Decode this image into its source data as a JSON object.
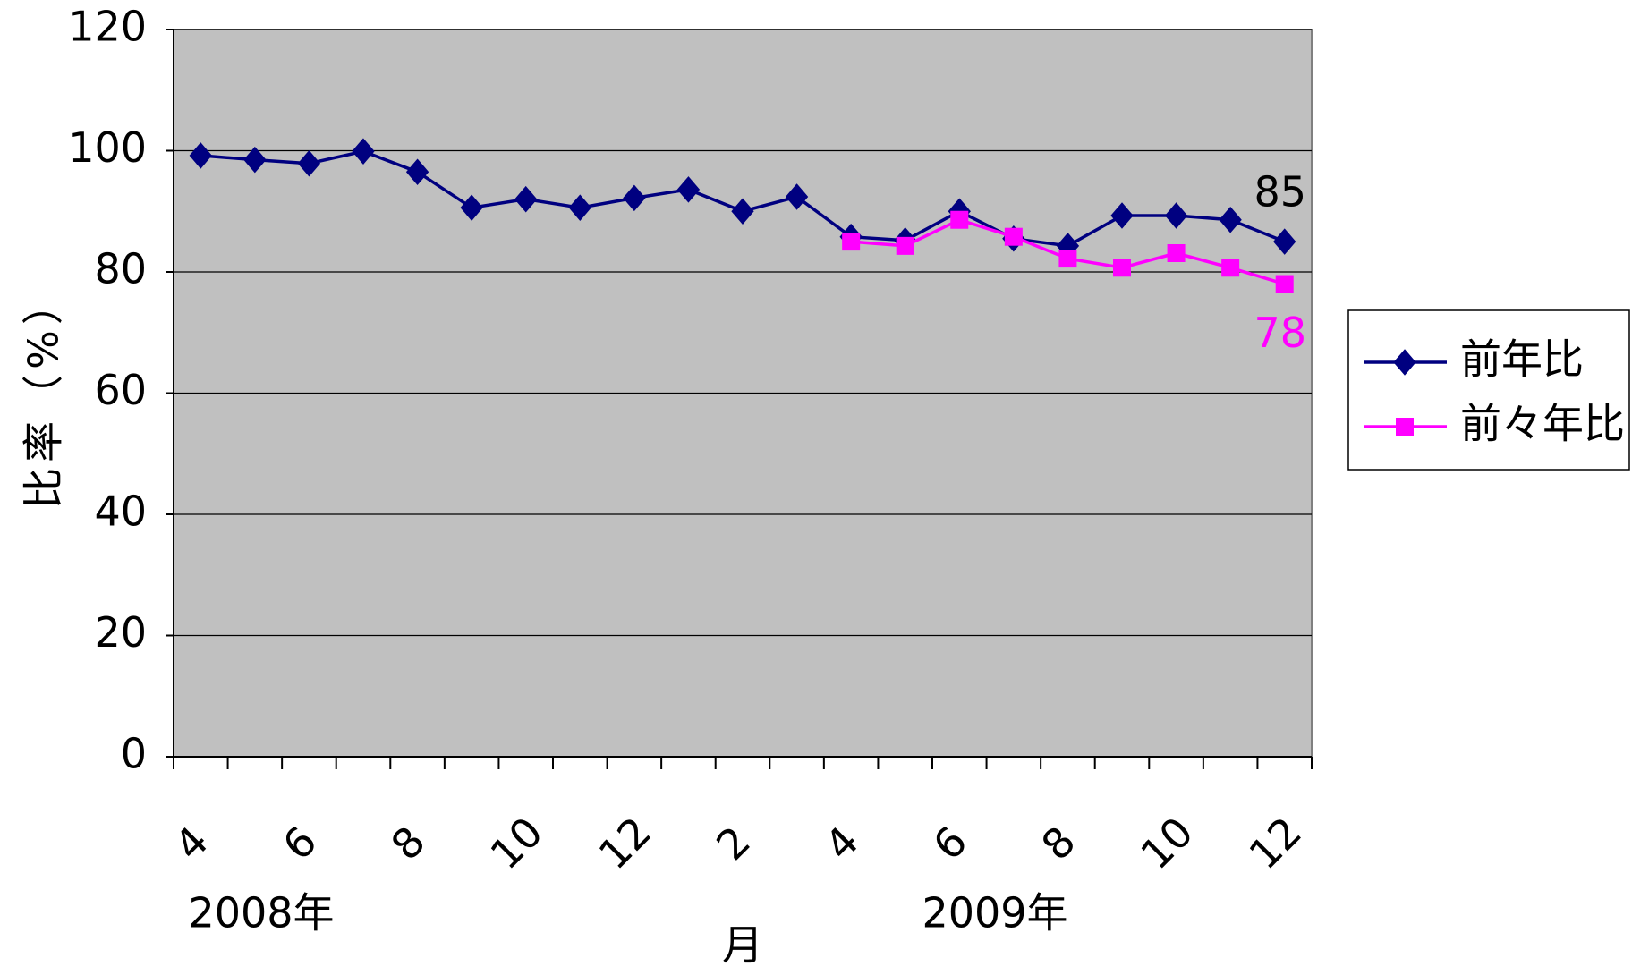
{
  "chart_data": {
    "type": "line",
    "y_label": "比率（%）",
    "x_label": "月",
    "year_labels": [
      "2008年",
      "2009年"
    ],
    "categories": [
      "4",
      null,
      "6",
      null,
      "8",
      null,
      "10",
      null,
      "12",
      null,
      "2",
      null,
      "4",
      null,
      "6",
      null,
      "8",
      null,
      "10",
      null,
      "12"
    ],
    "series": [
      {
        "name": "前年比",
        "color": "#000080",
        "marker": "diamond",
        "values": [
          99.2,
          98.5,
          97.9,
          99.9,
          96.5,
          90.6,
          92.0,
          90.6,
          92.2,
          93.6,
          90.0,
          92.4,
          85.8,
          85.2,
          90.0,
          85.5,
          84.3,
          89.3,
          89.3,
          88.6,
          85
        ]
      },
      {
        "name": "前々年比",
        "color": "#ff00ff",
        "marker": "square",
        "values": [
          null,
          null,
          null,
          null,
          null,
          null,
          null,
          null,
          null,
          null,
          null,
          null,
          85.0,
          84.3,
          88.6,
          85.8,
          82.2,
          80.7,
          83.1,
          80.7,
          78
        ]
      }
    ],
    "ylim": [
      0,
      120
    ],
    "yticks": [
      0,
      20,
      40,
      60,
      80,
      100,
      120
    ],
    "grid": true,
    "plot_background": "#c0c0c0",
    "legend": "right"
  }
}
